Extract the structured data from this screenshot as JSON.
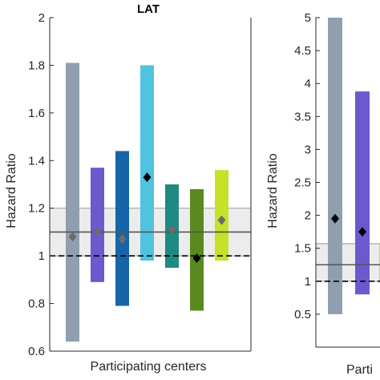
{
  "chart_data": [
    {
      "type": "bar",
      "title": "LAT",
      "xlabel": "Participating centers",
      "ylabel": "Hazard Ratio",
      "ylim": [
        0.6,
        2.0
      ],
      "yticks": [
        "0.6",
        "0.8",
        "1",
        "1.2",
        "1.4",
        "1.6",
        "1.8",
        "2"
      ],
      "pooled": {
        "hr": 1.1,
        "ci_low": 1.0,
        "ci_high": 1.2
      },
      "reference_line": 1.0,
      "series": [
        {
          "low": 0.64,
          "high": 1.81,
          "hr": 1.08,
          "color": "#8f9fb0",
          "marker": "#6b6b6b"
        },
        {
          "low": 0.89,
          "high": 1.37,
          "hr": 1.1,
          "color": "#6a5acd",
          "marker": "#6b6b6b"
        },
        {
          "low": 0.79,
          "high": 1.44,
          "hr": 1.07,
          "color": "#1565a8",
          "marker": "#6b6b6b"
        },
        {
          "low": 0.98,
          "high": 1.8,
          "hr": 1.33,
          "color": "#4fc3e0",
          "marker": "#000000"
        },
        {
          "low": 0.95,
          "high": 1.3,
          "hr": 1.11,
          "color": "#1f8a82",
          "marker": "#6b6b6b"
        },
        {
          "low": 0.77,
          "high": 1.28,
          "hr": 0.99,
          "color": "#5a8a1f",
          "marker": "#000000"
        },
        {
          "low": 0.98,
          "high": 1.36,
          "hr": 1.15,
          "color": "#c7e02a",
          "marker": "#6b6b6b"
        }
      ]
    },
    {
      "type": "bar",
      "title": "",
      "xlabel": "Parti",
      "ylabel": "Hazard Ratio",
      "ylim": [
        0,
        5
      ],
      "yticks": [
        "0.5",
        "1",
        "1.5",
        "2",
        "2.5",
        "3",
        "3.5",
        "4",
        "4.5",
        "5"
      ],
      "pooled": {
        "hr": 1.25,
        "ci_low": 1.0,
        "ci_high": 1.57
      },
      "reference_line": 1.0,
      "series": [
        {
          "low": 0.5,
          "high": 5.0,
          "hr": 1.95,
          "color": "#8f9fb0",
          "marker": "#000000"
        },
        {
          "low": 0.8,
          "high": 3.88,
          "hr": 1.75,
          "color": "#6a5acd",
          "marker": "#000000"
        }
      ]
    }
  ]
}
